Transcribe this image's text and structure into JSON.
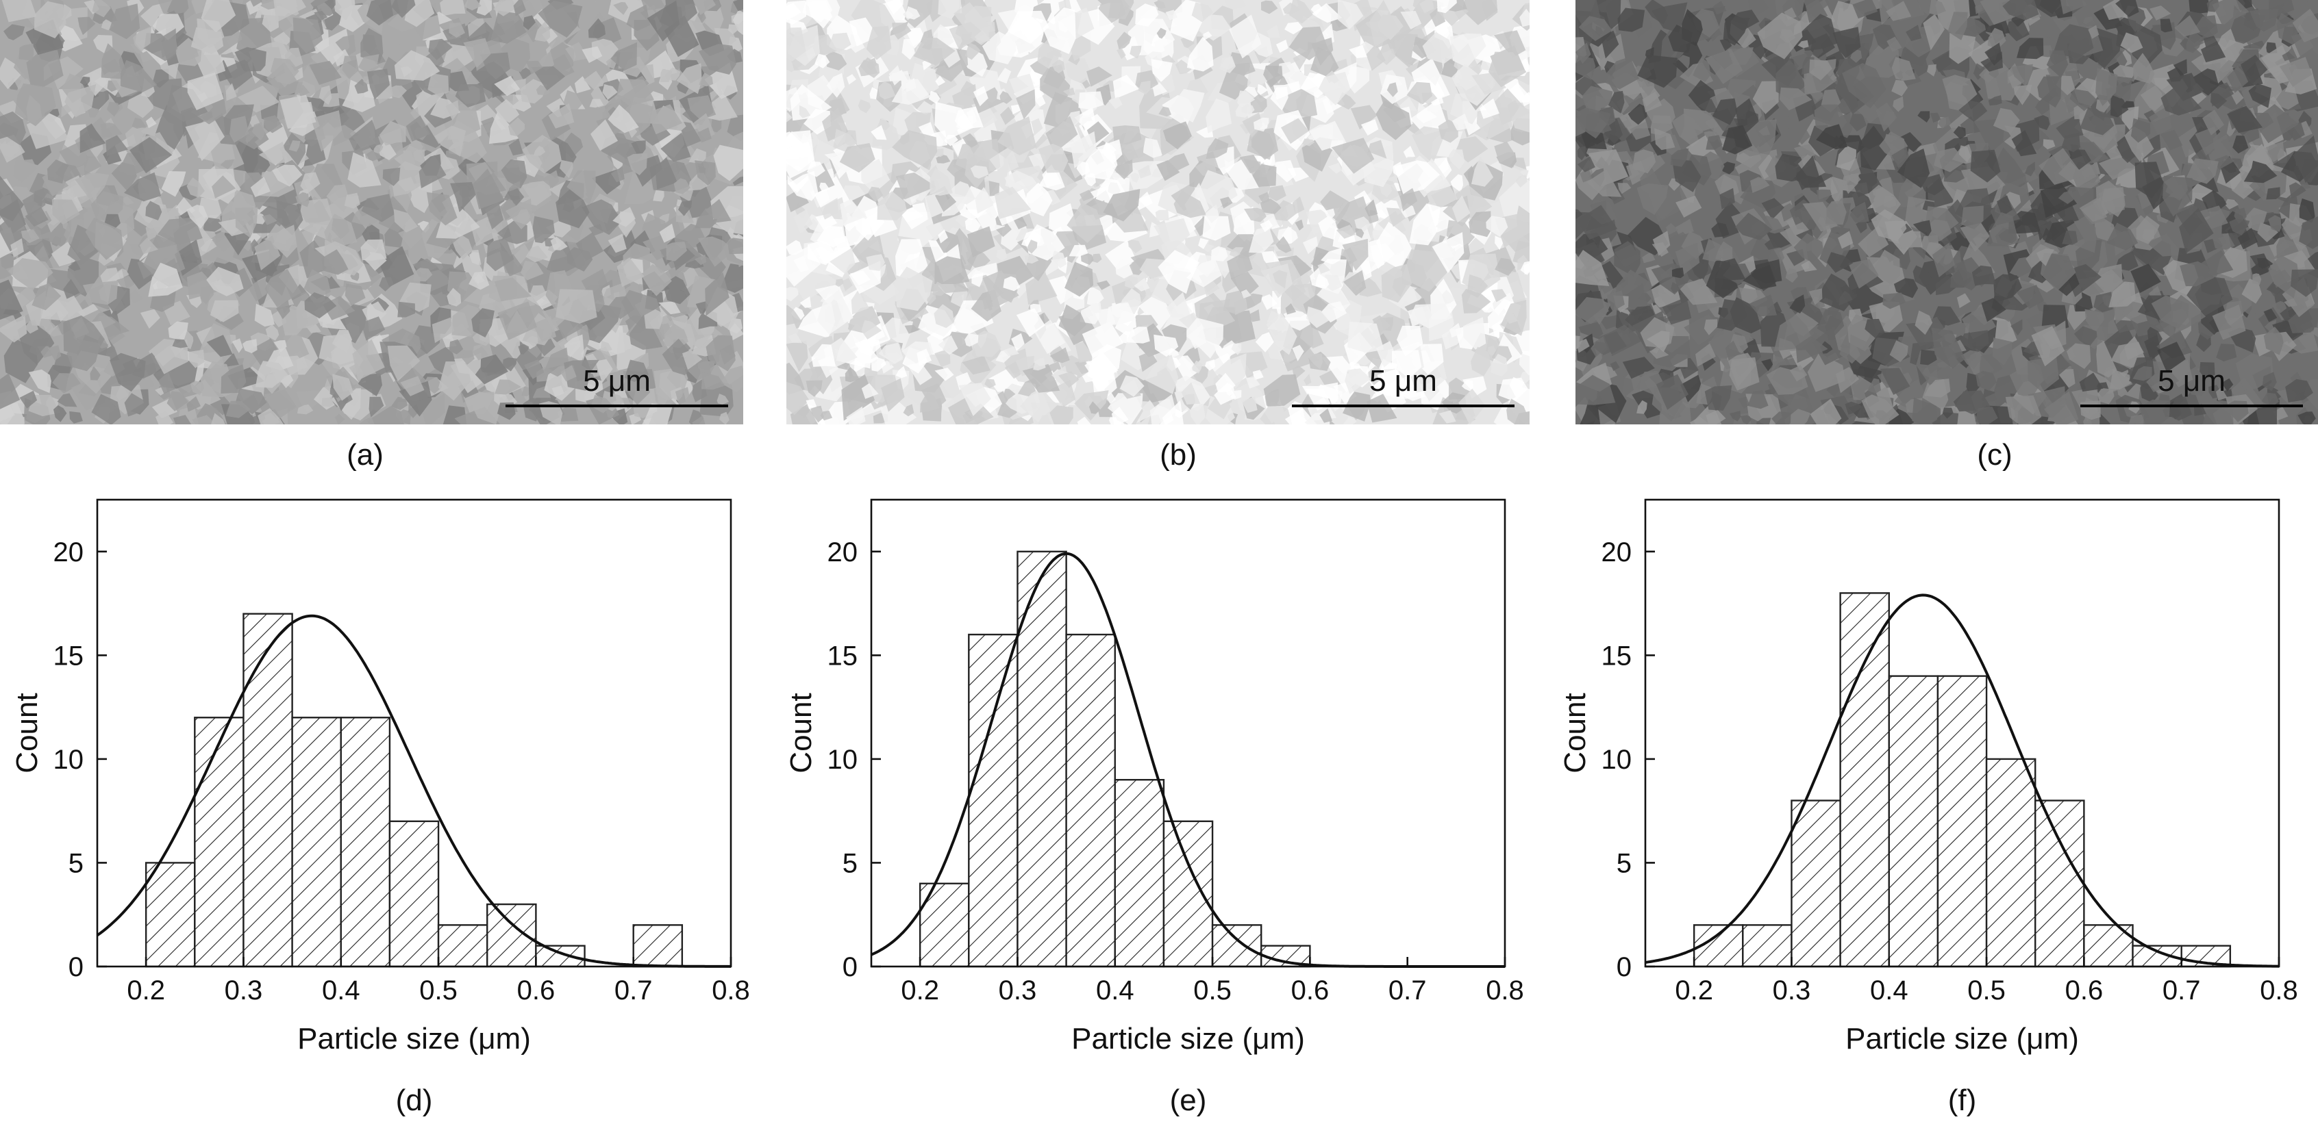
{
  "micrographs": [
    {
      "label": "(a)",
      "scale_bar": "5 μm",
      "tone": "#a9a9a9"
    },
    {
      "label": "(b)",
      "scale_bar": "5 μm",
      "tone": "#e4e4e4"
    },
    {
      "label": "(c)",
      "scale_bar": "5 μm",
      "tone": "#6f6f6f"
    }
  ],
  "chart_data": [
    {
      "type": "bar",
      "panel": "(d)",
      "xlabel": "Particle size (μm)",
      "ylabel": "Count",
      "xlim": [
        0.15,
        0.8
      ],
      "ylim": [
        0,
        22.5
      ],
      "xticks": [
        0.2,
        0.3,
        0.4,
        0.5,
        0.6,
        0.7,
        0.8
      ],
      "yticks": [
        0,
        5,
        10,
        15,
        20
      ],
      "bin_width": 0.05,
      "bins": [
        0.2,
        0.25,
        0.3,
        0.35,
        0.4,
        0.45,
        0.5,
        0.55,
        0.6,
        0.65,
        0.7
      ],
      "values": [
        5,
        12,
        17,
        12,
        12,
        7,
        2,
        3,
        1,
        0,
        2
      ],
      "fit": {
        "type": "gaussian",
        "mean": 0.37,
        "sigma": 0.1,
        "peak": 16.9
      },
      "grid": false
    },
    {
      "type": "bar",
      "panel": "(e)",
      "xlabel": "Particle size (μm)",
      "ylabel": "Count",
      "xlim": [
        0.15,
        0.8
      ],
      "ylim": [
        0,
        22.5
      ],
      "xticks": [
        0.2,
        0.3,
        0.4,
        0.5,
        0.6,
        0.7,
        0.8
      ],
      "yticks": [
        0,
        5,
        10,
        15,
        20
      ],
      "bin_width": 0.05,
      "bins": [
        0.2,
        0.25,
        0.3,
        0.35,
        0.4,
        0.45,
        0.5,
        0.55
      ],
      "values": [
        4,
        16,
        20,
        16,
        9,
        7,
        2,
        1
      ],
      "fit": {
        "type": "gaussian",
        "mean": 0.35,
        "sigma": 0.075,
        "peak": 19.9
      },
      "grid": false
    },
    {
      "type": "bar",
      "panel": "(f)",
      "xlabel": "Particle size (μm)",
      "ylabel": "Count",
      "xlim": [
        0.15,
        0.8
      ],
      "ylim": [
        0,
        22.5
      ],
      "xticks": [
        0.2,
        0.3,
        0.4,
        0.5,
        0.6,
        0.7,
        0.8
      ],
      "yticks": [
        0,
        5,
        10,
        15,
        20
      ],
      "bin_width": 0.05,
      "bins": [
        0.2,
        0.25,
        0.3,
        0.35,
        0.4,
        0.45,
        0.5,
        0.55,
        0.6,
        0.65,
        0.7
      ],
      "values": [
        2,
        2,
        8,
        18,
        14,
        14,
        10,
        8,
        2,
        1,
        1
      ],
      "fit": {
        "type": "gaussian",
        "mean": 0.435,
        "sigma": 0.095,
        "peak": 17.9
      },
      "grid": false
    }
  ]
}
